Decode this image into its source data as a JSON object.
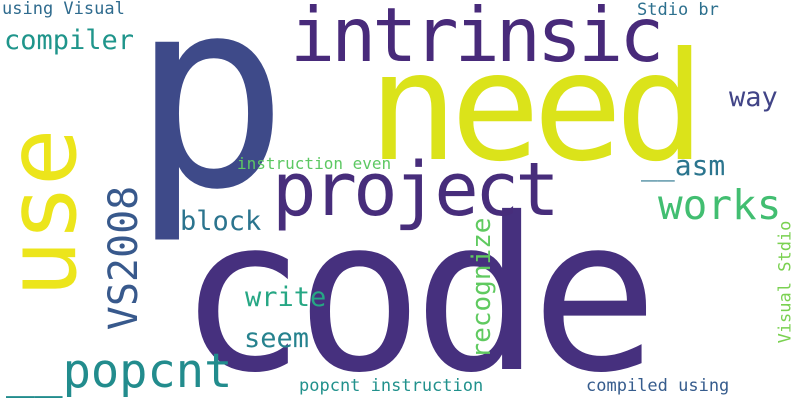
{
  "word_cloud": {
    "words": [
      {
        "text": "code",
        "color": "#46307e"
      },
      {
        "text": "p",
        "color": "#3e4a89"
      },
      {
        "text": "need",
        "color": "#dbe31a"
      },
      {
        "text": "use",
        "color": "#ece51b"
      },
      {
        "text": "intrinsic",
        "color": "#482a7a"
      },
      {
        "text": "project",
        "color": "#472d7b"
      },
      {
        "text": "__popcnt",
        "color": "#228c8d"
      },
      {
        "text": "VS2008",
        "color": "#38598c"
      },
      {
        "text": "works",
        "color": "#42be71"
      },
      {
        "text": "__asm",
        "color": "#2b758e"
      },
      {
        "text": "compiler",
        "color": "#1f958b"
      },
      {
        "text": "block",
        "color": "#2b748e"
      },
      {
        "text": "write",
        "color": "#26a784"
      },
      {
        "text": "seem",
        "color": "#26828e"
      },
      {
        "text": "recognize",
        "color": "#60ca60"
      },
      {
        "text": "way",
        "color": "#414487"
      },
      {
        "text": "using Visual",
        "color": "#2f6b8e"
      },
      {
        "text": "Stdio br",
        "color": "#2d708e"
      },
      {
        "text": "instruction even",
        "color": "#5dc863"
      },
      {
        "text": "Visual Stdio",
        "color": "#7ad151"
      },
      {
        "text": "popcnt instruction",
        "color": "#21918c"
      },
      {
        "text": "compiled using",
        "color": "#365c8d"
      }
    ]
  }
}
